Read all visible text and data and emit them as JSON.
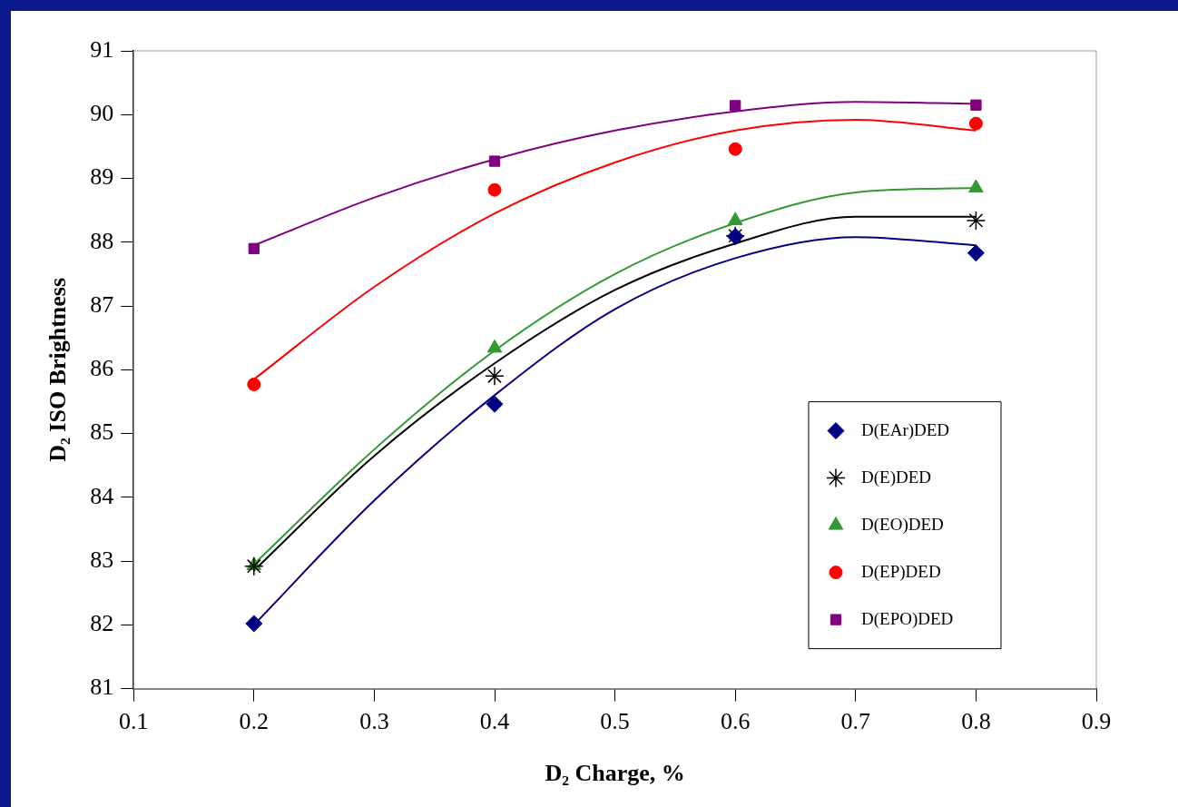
{
  "chart_data": {
    "type": "scatter",
    "xlabel": "D₂ Charge, %",
    "ylabel": "D₂ ISO Brightness",
    "xlim": [
      0.1,
      0.9
    ],
    "xticks": [
      0.1,
      0.2,
      0.3,
      0.4,
      0.5,
      0.6,
      0.7,
      0.8,
      0.9
    ],
    "ylim": [
      81,
      91
    ],
    "yticks": [
      81,
      82,
      83,
      84,
      85,
      86,
      87,
      88,
      89,
      90,
      91
    ],
    "grid": false,
    "legend": "bottom right",
    "x": [
      0.2,
      0.4,
      0.6,
      0.8
    ],
    "series": [
      {
        "name": "D(EAr)DED",
        "marker": "diamond",
        "color": "#000080",
        "values": [
          82.02,
          85.46,
          88.09,
          87.83
        ]
      },
      {
        "name": "D(E)DED",
        "marker": "cross",
        "color": "#000000",
        "values": [
          82.92,
          85.9,
          88.1,
          88.34
        ]
      },
      {
        "name": "D(EO)DED",
        "marker": "triangle",
        "color": "#339933",
        "values": [
          82.93,
          86.34,
          88.34,
          88.85
        ]
      },
      {
        "name": "D(EP)DED",
        "marker": "circle",
        "color": "#ff0000",
        "values": [
          85.77,
          88.82,
          89.46,
          89.86
        ]
      },
      {
        "name": "D(EPO)DED",
        "marker": "square",
        "color": "#800080",
        "values": [
          87.9,
          89.27,
          90.14,
          90.15
        ]
      },
      {
        "type": "line",
        "marker": "none",
        "color": "#000080",
        "x": [
          0.2,
          0.3,
          0.4,
          0.5,
          0.6,
          0.7,
          0.8
        ],
        "values": [
          82.0,
          83.95,
          85.6,
          86.95,
          87.75,
          88.08,
          87.95
        ]
      },
      {
        "type": "line",
        "marker": "none",
        "color": "#000000",
        "x": [
          0.2,
          0.3,
          0.4,
          0.5,
          0.6,
          0.7,
          0.8
        ],
        "values": [
          82.85,
          84.65,
          86.1,
          87.25,
          87.98,
          88.4,
          88.4
        ]
      },
      {
        "type": "line",
        "marker": "none",
        "color": "#339933",
        "x": [
          0.2,
          0.3,
          0.4,
          0.5,
          0.6,
          0.7,
          0.8
        ],
        "values": [
          82.95,
          84.75,
          86.3,
          87.5,
          88.3,
          88.78,
          88.85
        ]
      },
      {
        "type": "line",
        "marker": "none",
        "color": "#ff0000",
        "x": [
          0.2,
          0.3,
          0.4,
          0.5,
          0.6,
          0.7,
          0.8
        ],
        "values": [
          85.85,
          87.3,
          88.45,
          89.25,
          89.75,
          89.92,
          89.75
        ]
      },
      {
        "type": "line",
        "marker": "none",
        "color": "#800080",
        "x": [
          0.2,
          0.3,
          0.4,
          0.5,
          0.6,
          0.7,
          0.8
        ],
        "values": [
          87.95,
          88.7,
          89.3,
          89.75,
          90.05,
          90.2,
          90.17
        ]
      }
    ]
  }
}
